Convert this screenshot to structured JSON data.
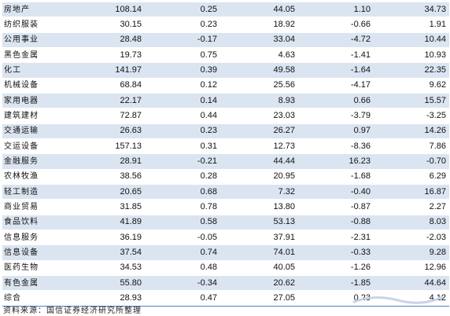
{
  "table": {
    "rows": [
      {
        "name": "房地产",
        "v1": "108.14",
        "v2": "0.25",
        "v3": "44.05",
        "v4": "1.10",
        "v5": "34.73"
      },
      {
        "name": "纺织服装",
        "v1": "30.15",
        "v2": "0.23",
        "v3": "18.92",
        "v4": "-0.66",
        "v5": "1.91"
      },
      {
        "name": "公用事业",
        "v1": "28.48",
        "v2": "-0.17",
        "v3": "33.04",
        "v4": "-4.72",
        "v5": "10.44"
      },
      {
        "name": "黑色金属",
        "v1": "19.73",
        "v2": "0.75",
        "v3": "4.63",
        "v4": "-1.41",
        "v5": "10.93"
      },
      {
        "name": "化工",
        "v1": "141.97",
        "v2": "0.39",
        "v3": "49.58",
        "v4": "-1.64",
        "v5": "22.35"
      },
      {
        "name": "机械设备",
        "v1": "68.84",
        "v2": "0.12",
        "v3": "25.56",
        "v4": "-4.17",
        "v5": "9.62"
      },
      {
        "name": "家用电器",
        "v1": "22.17",
        "v2": "0.14",
        "v3": "8.93",
        "v4": "0.66",
        "v5": "15.57"
      },
      {
        "name": "建筑建材",
        "v1": "72.87",
        "v2": "0.44",
        "v3": "23.03",
        "v4": "-3.79",
        "v5": "-3.25"
      },
      {
        "name": "交通运输",
        "v1": "26.63",
        "v2": "0.23",
        "v3": "26.27",
        "v4": "0.97",
        "v5": "14.26"
      },
      {
        "name": "交运设备",
        "v1": "157.13",
        "v2": "0.31",
        "v3": "12.73",
        "v4": "-8.36",
        "v5": "7.86"
      },
      {
        "name": "金融服务",
        "v1": "28.91",
        "v2": "-0.21",
        "v3": "44.44",
        "v4": "16.23",
        "v5": "-0.70"
      },
      {
        "name": "农林牧渔",
        "v1": "38.56",
        "v2": "0.28",
        "v3": "20.95",
        "v4": "-1.68",
        "v5": "6.29"
      },
      {
        "name": "轻工制造",
        "v1": "20.65",
        "v2": "0.68",
        "v3": "7.32",
        "v4": "-0.40",
        "v5": "16.87"
      },
      {
        "name": "商业贸易",
        "v1": "31.85",
        "v2": "0.78",
        "v3": "13.80",
        "v4": "-0.87",
        "v5": "2.27"
      },
      {
        "name": "食品饮料",
        "v1": "41.89",
        "v2": "0.58",
        "v3": "53.13",
        "v4": "-0.88",
        "v5": "8.03"
      },
      {
        "name": "信息服务",
        "v1": "36.19",
        "v2": "-0.05",
        "v3": "37.91",
        "v4": "-2.31",
        "v5": "-2.03"
      },
      {
        "name": "信息设备",
        "v1": "37.54",
        "v2": "0.74",
        "v3": "74.01",
        "v4": "-0.33",
        "v5": "9.28"
      },
      {
        "name": "医药生物",
        "v1": "34.53",
        "v2": "0.48",
        "v3": "40.05",
        "v4": "-1.26",
        "v5": "12.96"
      },
      {
        "name": "有色金属",
        "v1": "55.80",
        "v2": "-0.34",
        "v3": "20.62",
        "v4": "-1.85",
        "v5": "44.64"
      },
      {
        "name": "综合",
        "v1": "28.93",
        "v2": "0.47",
        "v3": "27.05",
        "v4": "0.23",
        "v5": "4.12"
      }
    ]
  },
  "source_note": "资料来源：国信证券经济研究所整理",
  "colors": {
    "band": "#dbe5f1",
    "rule": "#4f81bd"
  }
}
